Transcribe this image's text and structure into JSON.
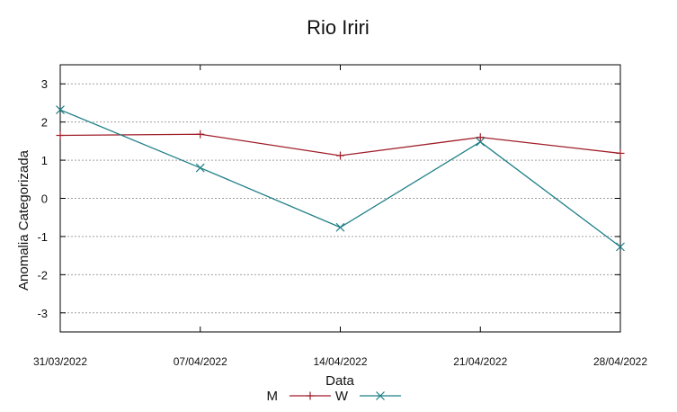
{
  "chart_data": {
    "type": "line",
    "title": "Rio Iriri",
    "xlabel": "Data",
    "ylabel": "Anomalia Categorizada",
    "categories": [
      "31/03/2022",
      "07/04/2022",
      "14/04/2022",
      "21/04/2022",
      "28/04/2022"
    ],
    "ylim": [
      -3.5,
      3.5
    ],
    "yticks": [
      3,
      2,
      1,
      0,
      -1,
      -2,
      -3
    ],
    "grid": true,
    "legend_position": "bottom-center",
    "series": [
      {
        "name": "M",
        "color": "#a01e2a",
        "marker": "plus",
        "values": [
          1.65,
          1.68,
          1.12,
          1.6,
          1.18
        ]
      },
      {
        "name": "W",
        "color": "#1f7f86",
        "marker": "x",
        "values": [
          2.32,
          0.8,
          -0.76,
          1.48,
          -1.27
        ]
      }
    ]
  }
}
